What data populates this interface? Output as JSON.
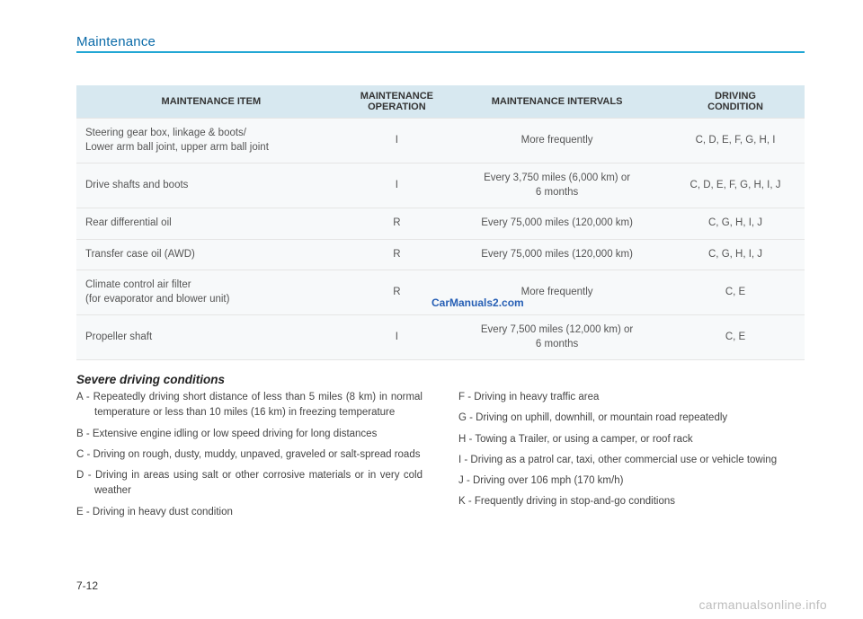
{
  "section_title": "Maintenance",
  "table": {
    "headers": {
      "item": "MAINTENANCE ITEM",
      "operation_l1": "MAINTENANCE",
      "operation_l2": "OPERATION",
      "intervals": "MAINTENANCE INTERVALS",
      "condition_l1": "DRIVING",
      "condition_l2": "CONDITION"
    },
    "rows": [
      {
        "item_l1": "Steering gear box, linkage & boots/",
        "item_l2": "Lower arm ball joint, upper arm ball joint",
        "op": "I",
        "interval": "More frequently",
        "cond": "C, D, E, F, G, H, I"
      },
      {
        "item": "Drive shafts and boots",
        "op": "I",
        "interval_l1": "Every 3,750 miles (6,000 km) or",
        "interval_l2": "6 months",
        "cond": "C, D, E, F, G, H, I, J"
      },
      {
        "item": "Rear differential oil",
        "op": "R",
        "interval": "Every 75,000 miles (120,000 km)",
        "cond": "C, G, H, I, J"
      },
      {
        "item": "Transfer case oil (AWD)",
        "op": "R",
        "interval": "Every 75,000 miles (120,000 km)",
        "cond": "C, G, H, I, J"
      },
      {
        "item_l1": "Climate control air filter",
        "item_l2": "(for evaporator and blower unit)",
        "op": "R",
        "interval": "More frequently",
        "cond": "C, E"
      },
      {
        "item": "Propeller shaft",
        "op": "I",
        "interval_l1": "Every 7,500 miles (12,000 km) or",
        "interval_l2": "6 months",
        "cond": "C, E"
      }
    ]
  },
  "watermark": "CarManuals2.com",
  "conditions": {
    "heading": "Severe driving conditions",
    "left": {
      "a": "A - Repeatedly driving short distance of less than 5 miles (8 km) in normal temperature or less than 10 miles (16 km) in freezing temperature",
      "b": "B - Extensive engine idling or low speed driving for long distances",
      "c": "C - Driving on rough, dusty, muddy, unpaved, graveled or salt-spread roads",
      "d": "D - Driving in areas using salt or other corrosive materials or in very cold weather",
      "e": "E - Driving in heavy dust condition"
    },
    "right": {
      "f": "F - Driving in heavy traffic area",
      "g": "G - Driving on uphill, downhill, or mountain road repeatedly",
      "h": "H - Towing a Trailer, or using a camper, or roof rack",
      "i": "I  - Driving as a patrol car, taxi, other commercial use or vehicle towing",
      "j": "J - Driving over 106 mph (170 km/h)",
      "k": "K - Frequently driving in stop-and-go conditions"
    }
  },
  "page_number": "7-12",
  "footer": "carmanualsonline.info",
  "colors": {
    "title": "#0a6aa8",
    "rule": "#22a7d4",
    "th_bg": "#d7e8f0",
    "td_bg": "#f7f9fa",
    "border": "#e5e5e5",
    "watermark": "#265fb5",
    "footer": "#bdbdbd"
  }
}
